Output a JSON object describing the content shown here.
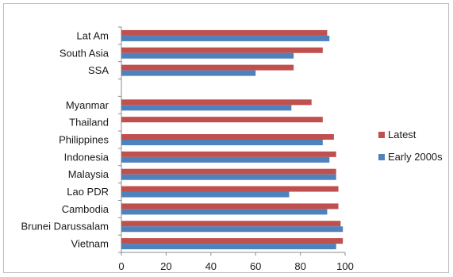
{
  "chart_data": {
    "type": "bar",
    "orientation": "horizontal",
    "title": "",
    "xlabel": "",
    "ylabel": "",
    "xlim": [
      0,
      100
    ],
    "xticks": [
      0,
      20,
      40,
      60,
      80,
      100
    ],
    "grid": false,
    "legend_position": "right",
    "categories": [
      "Lat Am",
      "South Asia",
      "SSA",
      "",
      "Myanmar",
      "Thailand",
      "Philippines",
      "Indonesia",
      "Malaysia",
      "Lao PDR",
      "Cambodia",
      "Brunei Darussalam",
      "Vietnam"
    ],
    "series": [
      {
        "name": "Latest",
        "color": "#c0504d",
        "values": [
          92,
          90,
          77,
          null,
          85,
          90,
          95,
          96,
          96,
          97,
          97,
          98,
          99
        ]
      },
      {
        "name": "Early 2000s",
        "color": "#4f81bd",
        "values": [
          93,
          77,
          60,
          null,
          76,
          null,
          90,
          93,
          96,
          75,
          92,
          99,
          96
        ]
      }
    ]
  }
}
